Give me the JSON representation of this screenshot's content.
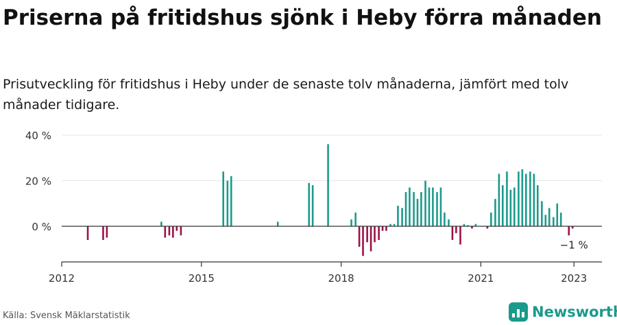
{
  "header": {
    "title": "Priserna på fritidshus sjönk i Heby förra månaden",
    "subtitle": "Prisutveckling för fritidshus i Heby under de senaste tolv månaderna, jämfört med tolv månader tidigare."
  },
  "footer": {
    "source": "Källa: Svensk Mäklarstatistik",
    "brand": "Newsworthy"
  },
  "colors": {
    "positive": "#1a9a8b",
    "negative": "#9b1149",
    "axis": "#333333",
    "grid": "#e6e6e6",
    "brand": "#1a9a8b"
  },
  "chart_data": {
    "type": "bar",
    "title": "Priserna på fritidshus sjönk i Heby förra månaden",
    "xlabel": "",
    "ylabel": "",
    "unit": "%",
    "ylim": [
      -15,
      40
    ],
    "yticks": [
      0,
      20,
      40
    ],
    "ytick_labels": [
      "0 %",
      "20 %",
      "40 %"
    ],
    "xlim": [
      2012,
      2023.6
    ],
    "xticks": [
      2012,
      2015,
      2018,
      2021,
      2023
    ],
    "xtick_labels": [
      "2012",
      "2015",
      "2018",
      "2021",
      "2023"
    ],
    "annotation": {
      "text": "−1 %",
      "x": 2023.0,
      "y": -1
    },
    "series": [
      {
        "name": "Prisutveckling",
        "points": [
          {
            "x": 2012.56,
            "y": -6
          },
          {
            "x": 2012.89,
            "y": -6
          },
          {
            "x": 2012.97,
            "y": -5
          },
          {
            "x": 2014.14,
            "y": 2
          },
          {
            "x": 2014.22,
            "y": -5
          },
          {
            "x": 2014.31,
            "y": -4
          },
          {
            "x": 2014.39,
            "y": -5
          },
          {
            "x": 2014.47,
            "y": -2
          },
          {
            "x": 2014.56,
            "y": -4
          },
          {
            "x": 2015.47,
            "y": 24
          },
          {
            "x": 2015.56,
            "y": 20
          },
          {
            "x": 2015.64,
            "y": 22
          },
          {
            "x": 2016.64,
            "y": 2
          },
          {
            "x": 2017.31,
            "y": 19
          },
          {
            "x": 2017.39,
            "y": 18
          },
          {
            "x": 2017.72,
            "y": 36
          },
          {
            "x": 2018.22,
            "y": 3
          },
          {
            "x": 2018.31,
            "y": 6
          },
          {
            "x": 2018.39,
            "y": -9
          },
          {
            "x": 2018.47,
            "y": -13
          },
          {
            "x": 2018.56,
            "y": -7
          },
          {
            "x": 2018.64,
            "y": -11
          },
          {
            "x": 2018.72,
            "y": -7
          },
          {
            "x": 2018.81,
            "y": -6
          },
          {
            "x": 2018.89,
            "y": -2
          },
          {
            "x": 2018.97,
            "y": -2
          },
          {
            "x": 2019.06,
            "y": 1
          },
          {
            "x": 2019.14,
            "y": 1
          },
          {
            "x": 2019.22,
            "y": 9
          },
          {
            "x": 2019.31,
            "y": 8
          },
          {
            "x": 2019.39,
            "y": 15
          },
          {
            "x": 2019.47,
            "y": 17
          },
          {
            "x": 2019.56,
            "y": 15
          },
          {
            "x": 2019.64,
            "y": 12
          },
          {
            "x": 2019.72,
            "y": 15
          },
          {
            "x": 2019.81,
            "y": 20
          },
          {
            "x": 2019.89,
            "y": 17
          },
          {
            "x": 2019.97,
            "y": 17
          },
          {
            "x": 2020.06,
            "y": 15
          },
          {
            "x": 2020.14,
            "y": 17
          },
          {
            "x": 2020.22,
            "y": 6
          },
          {
            "x": 2020.31,
            "y": 3
          },
          {
            "x": 2020.39,
            "y": -6
          },
          {
            "x": 2020.47,
            "y": -3
          },
          {
            "x": 2020.56,
            "y": -8
          },
          {
            "x": 2020.64,
            "y": 1
          },
          {
            "x": 2020.72,
            "y": 0.5
          },
          {
            "x": 2020.81,
            "y": -1
          },
          {
            "x": 2020.89,
            "y": 1
          },
          {
            "x": 2021.14,
            "y": -1
          },
          {
            "x": 2021.22,
            "y": 6
          },
          {
            "x": 2021.31,
            "y": 12
          },
          {
            "x": 2021.39,
            "y": 23
          },
          {
            "x": 2021.47,
            "y": 18
          },
          {
            "x": 2021.56,
            "y": 24
          },
          {
            "x": 2021.64,
            "y": 16
          },
          {
            "x": 2021.72,
            "y": 17
          },
          {
            "x": 2021.81,
            "y": 24
          },
          {
            "x": 2021.89,
            "y": 25
          },
          {
            "x": 2021.97,
            "y": 23
          },
          {
            "x": 2022.06,
            "y": 24
          },
          {
            "x": 2022.14,
            "y": 23
          },
          {
            "x": 2022.22,
            "y": 18
          },
          {
            "x": 2022.31,
            "y": 11
          },
          {
            "x": 2022.39,
            "y": 5
          },
          {
            "x": 2022.47,
            "y": 8
          },
          {
            "x": 2022.56,
            "y": 4
          },
          {
            "x": 2022.64,
            "y": 10
          },
          {
            "x": 2022.72,
            "y": 6
          },
          {
            "x": 2022.89,
            "y": -4
          },
          {
            "x": 2022.97,
            "y": -1
          }
        ]
      }
    ]
  }
}
